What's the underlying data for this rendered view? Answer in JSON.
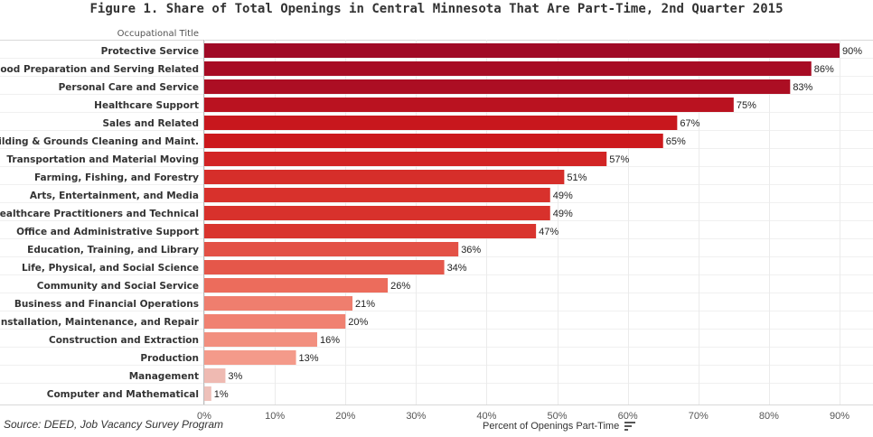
{
  "title": "Figure 1. Share of Total Openings in Central Minnesota That Are Part-Time, 2nd Quarter 2015",
  "source": "Source: DEED, Job Vacancy Survey Program",
  "row_header": "Occupational Title",
  "chart_data": {
    "type": "bar",
    "orientation": "horizontal",
    "title": "Figure 1. Share of Total Openings in Central Minnesota That Are Part-Time, 2nd Quarter 2015",
    "xlabel": "Percent of Openings Part-Time",
    "ylabel": "Occupational Title",
    "xlim": [
      0,
      90
    ],
    "xticks": [
      0,
      10,
      20,
      30,
      40,
      50,
      60,
      70,
      80,
      90
    ],
    "xtick_labels": [
      "0%",
      "10%",
      "20%",
      "30%",
      "40%",
      "50%",
      "60%",
      "70%",
      "80%",
      "90%"
    ],
    "color_encoding": "sequential red by value (light pink = low, dark red = high)",
    "categories": [
      "Protective Service",
      "Food Preparation and Serving Related",
      "Personal Care and Service",
      "Healthcare Support",
      "Sales and Related",
      "Building & Grounds Cleaning and Maint.",
      "Transportation and Material Moving",
      "Farming, Fishing, and Forestry",
      "Arts, Entertainment, and Media",
      "Healthcare Practitioners and Technical",
      "Office and Administrative Support",
      "Education, Training, and Library",
      "Life, Physical, and Social Science",
      "Community and Social Service",
      "Business and Financial Operations",
      "Installation, Maintenance, and Repair",
      "Construction and Extraction",
      "Production",
      "Management",
      "Computer and Mathematical"
    ],
    "values": [
      90,
      86,
      83,
      75,
      67,
      65,
      57,
      51,
      49,
      49,
      47,
      36,
      34,
      26,
      21,
      20,
      16,
      13,
      3,
      1
    ],
    "value_labels": [
      "90%",
      "86%",
      "83%",
      "75%",
      "67%",
      "65%",
      "57%",
      "51%",
      "49%",
      "49%",
      "47%",
      "36%",
      "34%",
      "26%",
      "21%",
      "20%",
      "16%",
      "13%",
      "3%",
      "1%"
    ]
  }
}
